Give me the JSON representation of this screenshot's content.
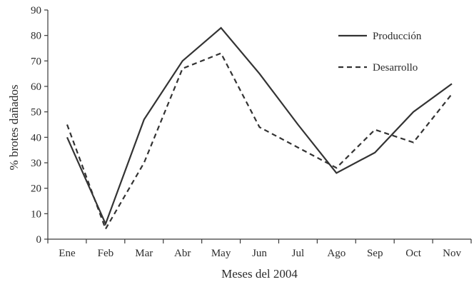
{
  "chart_data": {
    "type": "line",
    "title": "",
    "xlabel": "Meses del 2004",
    "ylabel": "% brotes dañados",
    "categories": [
      "Ene",
      "Feb",
      "Mar",
      "Abr",
      "May",
      "Jun",
      "Jul",
      "Ago",
      "Sep",
      "Oct",
      "Nov"
    ],
    "ylim": [
      0,
      90
    ],
    "yticks": [
      "0",
      "10",
      "20",
      "30",
      "40",
      "50",
      "60",
      "70",
      "80",
      "90"
    ],
    "grid": false,
    "legend_position": "top-right",
    "series": [
      {
        "name": "Producción",
        "line_style": "solid",
        "color": "#333333",
        "values": [
          40,
          6,
          47,
          70,
          83,
          65,
          45,
          26,
          34,
          50,
          61
        ]
      },
      {
        "name": "Desarrollo",
        "line_style": "dashed",
        "color": "#333333",
        "values": [
          45,
          4,
          30,
          67,
          73,
          44,
          36,
          28,
          43,
          38,
          57
        ]
      }
    ]
  }
}
